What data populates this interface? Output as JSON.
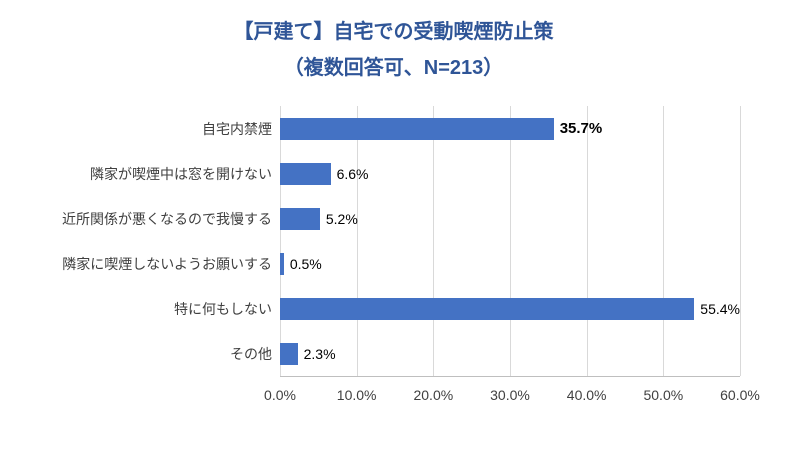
{
  "title": {
    "line1": "【戸建て】自宅での受動喫煙防止策",
    "line2": "（複数回答可、N=213）"
  },
  "colors": {
    "bar": "#4472C4",
    "title": "#2F5597",
    "gridline": "#D9D9D9",
    "axis_line": "#BFBFBF",
    "axis_text": "#404040"
  },
  "chart_data": {
    "type": "bar",
    "orientation": "horizontal",
    "title": "【戸建て】自宅での受動喫煙防止策（複数回答可、N=213）",
    "categories": [
      "自宅内禁煙",
      "隣家が喫煙中は窓を開けない",
      "近所関係が悪くなるので我慢する",
      "隣家に喫煙しないようお願いする",
      "特に何もしない",
      "その他"
    ],
    "values": [
      35.7,
      6.6,
      5.2,
      0.5,
      55.4,
      2.3
    ],
    "data_labels": [
      "35.7%",
      "6.6%",
      "5.2%",
      "0.5%",
      "55.4%",
      "2.3%"
    ],
    "bold_label_indices": [
      0
    ],
    "x_ticks": [
      "0.0%",
      "10.0%",
      "20.0%",
      "30.0%",
      "40.0%",
      "50.0%",
      "60.0%"
    ],
    "xlim": [
      0,
      60
    ],
    "xlabel": "",
    "ylabel": "",
    "grid": true,
    "legend": false
  }
}
